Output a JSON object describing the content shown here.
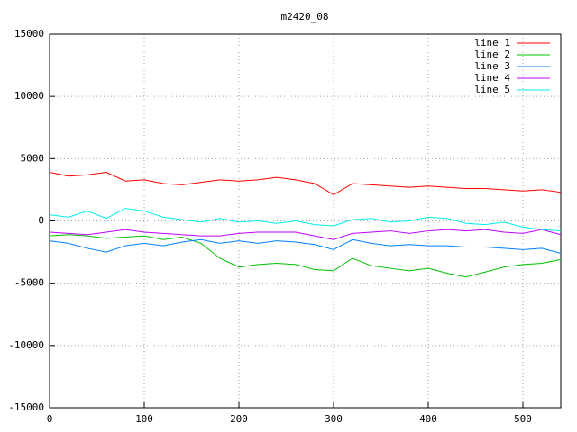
{
  "chart_data": {
    "type": "line",
    "title": "m2420_08",
    "x": [
      0,
      20,
      40,
      60,
      80,
      100,
      120,
      140,
      160,
      180,
      200,
      220,
      240,
      260,
      280,
      300,
      320,
      340,
      360,
      380,
      400,
      420,
      440,
      460,
      480,
      500,
      520,
      540
    ],
    "series": [
      {
        "name": "line 1",
        "color": "#ff0000",
        "values": [
          3900,
          3600,
          3700,
          3900,
          3200,
          3300,
          3000,
          2900,
          3100,
          3300,
          3200,
          3300,
          3500,
          3300,
          3000,
          2100,
          3000,
          2900,
          2800,
          2700,
          2800,
          2700,
          2600,
          2600,
          2500,
          2400,
          2500,
          2300
        ]
      },
      {
        "name": "line 2",
        "color": "#00c000",
        "values": [
          -1200,
          -1100,
          -1200,
          -1400,
          -1300,
          -1200,
          -1500,
          -1300,
          -1800,
          -3000,
          -3700,
          -3500,
          -3400,
          -3500,
          -3900,
          -4000,
          -3000,
          -3600,
          -3800,
          -4000,
          -3800,
          -4200,
          -4500,
          -4100,
          -3700,
          -3500,
          -3400,
          -3100
        ]
      },
      {
        "name": "line 3",
        "color": "#0080ff",
        "values": [
          -1600,
          -1800,
          -2200,
          -2500,
          -2000,
          -1800,
          -2000,
          -1700,
          -1500,
          -1800,
          -1600,
          -1800,
          -1600,
          -1700,
          -1900,
          -2300,
          -1500,
          -1800,
          -2000,
          -1900,
          -2000,
          -2000,
          -2100,
          -2100,
          -2200,
          -2300,
          -2200,
          -2600
        ]
      },
      {
        "name": "line 4",
        "color": "#c000ff",
        "values": [
          -900,
          -1000,
          -1100,
          -900,
          -700,
          -900,
          -1000,
          -1100,
          -1200,
          -1200,
          -1000,
          -900,
          -900,
          -900,
          -1200,
          -1500,
          -1000,
          -900,
          -800,
          -1000,
          -800,
          -700,
          -800,
          -700,
          -900,
          -1000,
          -700,
          -1100
        ]
      },
      {
        "name": "line 5",
        "color": "#00eeee",
        "values": [
          500,
          300,
          800,
          200,
          1000,
          800,
          300,
          100,
          -100,
          200,
          -100,
          0,
          -200,
          0,
          -300,
          -400,
          100,
          200,
          -100,
          0,
          300,
          200,
          -200,
          -300,
          -100,
          -500,
          -700,
          -800
        ]
      }
    ],
    "xlim": [
      0,
      540
    ],
    "ylim": [
      -15000,
      15000
    ],
    "xticks": [
      0,
      100,
      200,
      300,
      400,
      500
    ],
    "yticks": [
      -15000,
      -10000,
      -5000,
      0,
      5000,
      10000,
      15000
    ],
    "grid": true,
    "legend": "top-right"
  }
}
